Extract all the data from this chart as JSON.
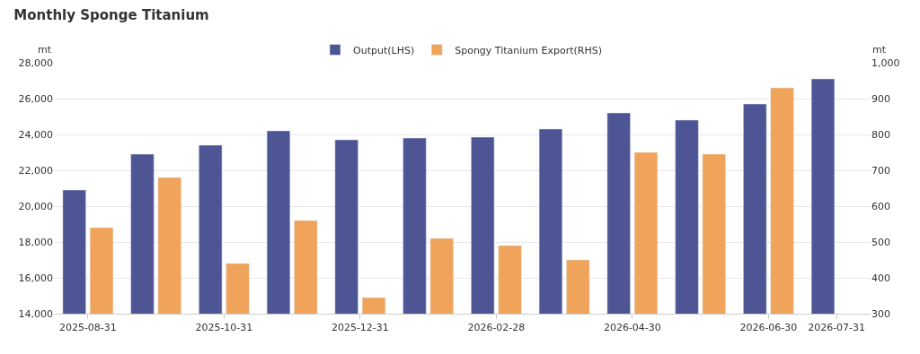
{
  "chart_data": {
    "type": "bar",
    "title": "Monthly Sponge Titanium",
    "categories": [
      "2025-08-31",
      null,
      "2025-10-31",
      null,
      "2025-12-31",
      null,
      "2026-02-28",
      null,
      "2026-04-30",
      null,
      "2026-06-30",
      "2026-07-31"
    ],
    "series": [
      {
        "name": "Output(LHS)",
        "color": "#4e5595",
        "values": [
          20900,
          22900,
          23400,
          24200,
          23700,
          23800,
          23850,
          24300,
          25200,
          24800,
          25700,
          27100
        ]
      },
      {
        "name": "Spongy Titanium Export(RHS)",
        "color": "#f0a35a",
        "axis": "y2",
        "values": [
          540,
          680,
          440,
          560,
          345,
          510,
          490,
          450,
          750,
          745,
          930,
          null
        ]
      }
    ],
    "ylabel": "mt",
    "y2label": "mt",
    "ylim": [
      14000,
      28000
    ],
    "yticks": [
      {
        "value": 14000,
        "label": "14,000"
      },
      {
        "value": 16000,
        "label": "16,000"
      },
      {
        "value": 18000,
        "label": "18,000"
      },
      {
        "value": 20000,
        "label": "20,000"
      },
      {
        "value": 22000,
        "label": "22,000"
      },
      {
        "value": 24000,
        "label": "24,000"
      },
      {
        "value": 26000,
        "label": "26,000"
      },
      {
        "value": 28000,
        "label": "28,000"
      }
    ],
    "y2lim": [
      300,
      1000
    ],
    "y2ticks": [
      300,
      400,
      500,
      600,
      700,
      800,
      900,
      {
        "value": 1000,
        "label": "1,000"
      }
    ],
    "grid": "y",
    "legend": "top"
  }
}
